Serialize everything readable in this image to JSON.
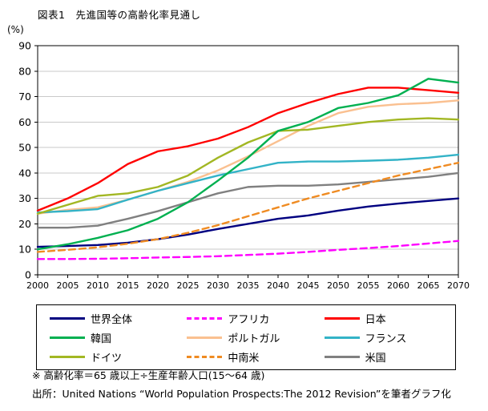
{
  "title": "図表1　先進国等の高齢化率見通し",
  "y_axis_unit": "(%)",
  "footnotes": {
    "note": "※ 高齢化率＝65 歳以上÷生産年齢人口(15～64 歳)",
    "source": "出所：United Nations “World Population Prospects:The 2012 Revision”を筆者グラフ化"
  },
  "chart_data": {
    "type": "line",
    "title": "図表1　先進国等の高齢化率見通し",
    "xlabel": "",
    "ylabel": "(%)",
    "x": [
      2000,
      2005,
      2010,
      2015,
      2020,
      2025,
      2030,
      2035,
      2040,
      2045,
      2050,
      2055,
      2060,
      2065,
      2070
    ],
    "ylim": [
      0,
      90
    ],
    "y_ticks": [
      0,
      10,
      20,
      30,
      40,
      50,
      60,
      70,
      80,
      90
    ],
    "grid": true,
    "legend_position": "bottom",
    "series": [
      {
        "id": "world",
        "name": "世界全体",
        "color": "#000080",
        "dash": false,
        "values": [
          11,
          11.3,
          11.7,
          12.6,
          14,
          15.8,
          18,
          20,
          22,
          23.3,
          25.2,
          26.8,
          28,
          29,
          30
        ]
      },
      {
        "id": "africa",
        "name": "アフリカ",
        "color": "#FF00FF",
        "dash": true,
        "values": [
          6.2,
          6.2,
          6.3,
          6.5,
          6.8,
          7,
          7.3,
          7.8,
          8.3,
          9,
          9.8,
          10.5,
          11.3,
          12.3,
          13.3
        ]
      },
      {
        "id": "japan",
        "name": "日本",
        "color": "#FF0000",
        "dash": false,
        "values": [
          25.2,
          30,
          36,
          43.5,
          48.5,
          50.5,
          53.5,
          58,
          63.5,
          67.5,
          71,
          73.5,
          73.5,
          72.5,
          71.5
        ]
      },
      {
        "id": "korea",
        "name": "韓国",
        "color": "#00B050",
        "dash": false,
        "values": [
          10,
          12,
          14.5,
          17.5,
          22,
          28.5,
          37,
          46,
          56.5,
          60,
          65.5,
          67.5,
          70.5,
          77,
          75.5
        ]
      },
      {
        "id": "portugal",
        "name": "ポルトガル",
        "color": "#FAC090",
        "dash": false,
        "values": [
          24,
          25.5,
          26.5,
          29.5,
          33,
          36.5,
          41,
          46.5,
          52.5,
          58.5,
          63.5,
          66,
          67,
          67.5,
          68.5
        ]
      },
      {
        "id": "france",
        "name": "フランス",
        "color": "#33B3C7",
        "dash": false,
        "values": [
          24.5,
          25,
          25.8,
          29.5,
          33,
          36,
          39,
          41.5,
          44,
          44.5,
          44.5,
          44.8,
          45.2,
          46,
          47.2
        ]
      },
      {
        "id": "germany",
        "name": "ドイツ",
        "color": "#A2B723",
        "dash": false,
        "values": [
          24,
          27.5,
          31,
          32,
          34.5,
          39,
          46,
          52,
          56.5,
          57,
          58.5,
          60,
          61,
          61.5,
          61
        ]
      },
      {
        "id": "latin-america",
        "name": "中南米",
        "color": "#EF8B22",
        "dash": true,
        "values": [
          9,
          9.8,
          10.8,
          12.2,
          14,
          16.5,
          19.5,
          23,
          26.5,
          30,
          33,
          36,
          39,
          41.5,
          44
        ]
      },
      {
        "id": "usa",
        "name": "米国",
        "color": "#808080",
        "dash": false,
        "values": [
          18.5,
          18.5,
          19.3,
          22,
          25,
          28.5,
          32,
          34.5,
          35,
          35,
          35.5,
          36.5,
          37.5,
          38.5,
          40
        ]
      }
    ],
    "draw_order": [
      "usa",
      "portugal",
      "france",
      "germany",
      "world",
      "latin-america",
      "africa",
      "japan",
      "korea"
    ]
  }
}
